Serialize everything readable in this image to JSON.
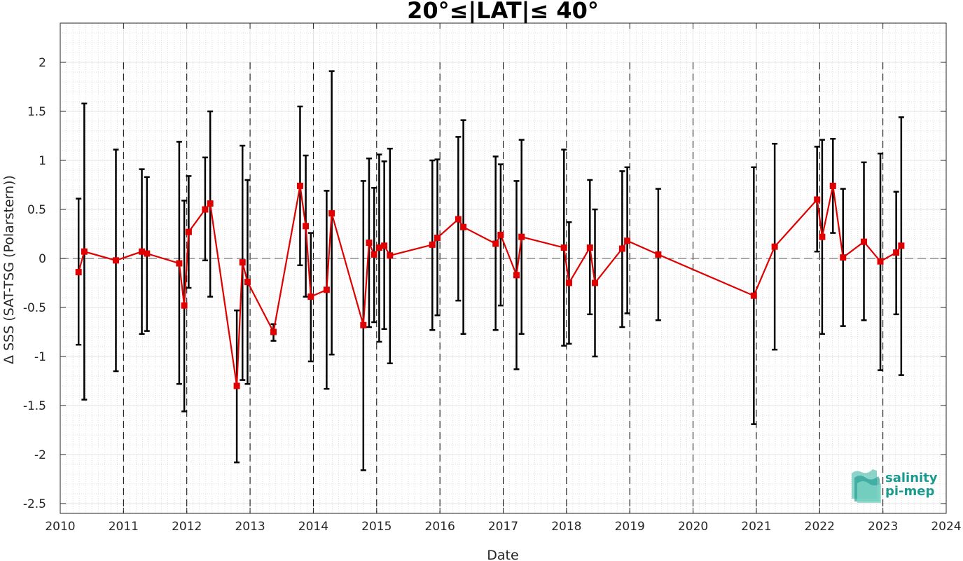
{
  "chart_data": {
    "type": "scatter",
    "title": "20°≤|LAT|≤ 40°",
    "xlabel": "Date",
    "ylabel": "Δ SSS (SAT-TSG (Polarstern))",
    "xlim": [
      2010,
      2024
    ],
    "ylim": [
      -2.6,
      2.4
    ],
    "x_ticks": [
      "2010",
      "2011",
      "2012",
      "2013",
      "2014",
      "2015",
      "2016",
      "2017",
      "2018",
      "2019",
      "2020",
      "2021",
      "2022",
      "2023",
      "2024"
    ],
    "y_ticks": [
      "-2.5",
      "-2",
      "-1.5",
      "-1",
      "-0.5",
      "0",
      "0.5",
      "1",
      "1.5",
      "2"
    ],
    "grid": true,
    "year_boundaries": "dashed vertical lines",
    "zero_line": "dashed horizontal",
    "series": [
      {
        "color": "#e00000",
        "marker": "square",
        "errorbar_color": "#000000",
        "points": [
          {
            "x": 2010.29,
            "y": -0.14,
            "lo": -0.88,
            "hi": 0.61
          },
          {
            "x": 2010.38,
            "y": 0.07,
            "lo": -1.44,
            "hi": 1.58
          },
          {
            "x": 2010.88,
            "y": -0.02,
            "lo": -1.15,
            "hi": 1.11
          },
          {
            "x": 2011.29,
            "y": 0.07,
            "lo": -0.77,
            "hi": 0.91
          },
          {
            "x": 2011.37,
            "y": 0.05,
            "lo": -0.74,
            "hi": 0.83
          },
          {
            "x": 2011.88,
            "y": -0.05,
            "lo": -1.28,
            "hi": 1.19
          },
          {
            "x": 2011.96,
            "y": -0.48,
            "lo": -1.56,
            "hi": 0.59
          },
          {
            "x": 2012.03,
            "y": 0.27,
            "lo": -0.3,
            "hi": 0.84
          },
          {
            "x": 2012.29,
            "y": 0.5,
            "lo": -0.02,
            "hi": 1.03
          },
          {
            "x": 2012.37,
            "y": 0.56,
            "lo": -0.39,
            "hi": 1.5
          },
          {
            "x": 2012.79,
            "y": -1.3,
            "lo": -2.08,
            "hi": -0.53
          },
          {
            "x": 2012.88,
            "y": -0.04,
            "lo": -1.24,
            "hi": 1.15
          },
          {
            "x": 2012.96,
            "y": -0.24,
            "lo": -1.28,
            "hi": 0.8
          },
          {
            "x": 2013.37,
            "y": -0.75,
            "lo": -0.84,
            "hi": -0.67
          },
          {
            "x": 2013.79,
            "y": 0.74,
            "lo": -0.07,
            "hi": 1.55
          },
          {
            "x": 2013.88,
            "y": 0.33,
            "lo": -0.39,
            "hi": 1.05
          },
          {
            "x": 2013.96,
            "y": -0.39,
            "lo": -1.05,
            "hi": 0.26
          },
          {
            "x": 2014.21,
            "y": -0.32,
            "lo": -1.33,
            "hi": 0.69
          },
          {
            "x": 2014.29,
            "y": 0.46,
            "lo": -0.98,
            "hi": 1.91
          },
          {
            "x": 2014.79,
            "y": -0.68,
            "lo": -2.16,
            "hi": 0.79
          },
          {
            "x": 2014.88,
            "y": 0.16,
            "lo": -0.7,
            "hi": 1.02
          },
          {
            "x": 2014.96,
            "y": 0.04,
            "lo": -0.65,
            "hi": 0.72
          },
          {
            "x": 2015.04,
            "y": 0.11,
            "lo": -0.85,
            "hi": 1.06
          },
          {
            "x": 2015.12,
            "y": 0.13,
            "lo": -0.72,
            "hi": 0.99
          },
          {
            "x": 2015.21,
            "y": 0.03,
            "lo": -1.07,
            "hi": 1.12
          },
          {
            "x": 2015.88,
            "y": 0.14,
            "lo": -0.73,
            "hi": 1.0
          },
          {
            "x": 2015.96,
            "y": 0.21,
            "lo": -0.58,
            "hi": 1.01
          },
          {
            "x": 2016.29,
            "y": 0.4,
            "lo": -0.43,
            "hi": 1.24
          },
          {
            "x": 2016.37,
            "y": 0.32,
            "lo": -0.77,
            "hi": 1.41
          },
          {
            "x": 2016.88,
            "y": 0.15,
            "lo": -0.73,
            "hi": 1.04
          },
          {
            "x": 2016.96,
            "y": 0.24,
            "lo": -0.48,
            "hi": 0.96
          },
          {
            "x": 2017.21,
            "y": -0.17,
            "lo": -1.13,
            "hi": 0.79
          },
          {
            "x": 2017.29,
            "y": 0.22,
            "lo": -0.77,
            "hi": 1.21
          },
          {
            "x": 2017.96,
            "y": 0.11,
            "lo": -0.89,
            "hi": 1.11
          },
          {
            "x": 2018.04,
            "y": -0.25,
            "lo": -0.87,
            "hi": 0.37
          },
          {
            "x": 2018.37,
            "y": 0.11,
            "lo": -0.57,
            "hi": 0.8
          },
          {
            "x": 2018.45,
            "y": -0.25,
            "lo": -1.0,
            "hi": 0.5
          },
          {
            "x": 2018.88,
            "y": 0.1,
            "lo": -0.7,
            "hi": 0.89
          },
          {
            "x": 2018.96,
            "y": 0.18,
            "lo": -0.56,
            "hi": 0.93
          },
          {
            "x": 2019.45,
            "y": 0.04,
            "lo": -0.63,
            "hi": 0.71
          },
          {
            "x": 2020.96,
            "y": -0.38,
            "lo": -1.69,
            "hi": 0.93
          },
          {
            "x": 2021.29,
            "y": 0.12,
            "lo": -0.93,
            "hi": 1.17
          },
          {
            "x": 2021.96,
            "y": 0.6,
            "lo": 0.07,
            "hi": 1.14
          },
          {
            "x": 2022.04,
            "y": 0.22,
            "lo": -0.77,
            "hi": 1.21
          },
          {
            "x": 2022.21,
            "y": 0.74,
            "lo": 0.26,
            "hi": 1.22
          },
          {
            "x": 2022.37,
            "y": 0.01,
            "lo": -0.69,
            "hi": 0.71
          },
          {
            "x": 2022.7,
            "y": 0.17,
            "lo": -0.63,
            "hi": 0.98
          },
          {
            "x": 2022.96,
            "y": -0.03,
            "lo": -1.14,
            "hi": 1.07
          },
          {
            "x": 2023.21,
            "y": 0.06,
            "lo": -0.57,
            "hi": 0.68
          },
          {
            "x": 2023.29,
            "y": 0.13,
            "lo": -1.19,
            "hi": 1.44
          }
        ]
      }
    ]
  },
  "logo": {
    "line1": "salinity",
    "line2": "pi-mep",
    "color": "#1a9a8f"
  }
}
